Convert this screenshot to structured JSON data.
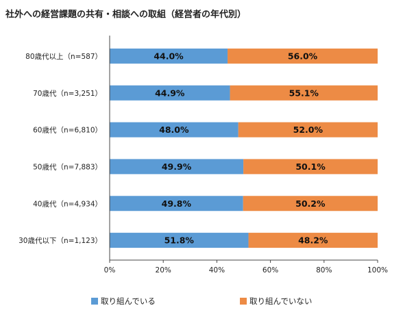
{
  "chart_data": {
    "type": "bar",
    "orientation": "horizontal",
    "stacked": true,
    "title": "社外への経営課題の共有・相談への取組（経営者の年代別）",
    "categories": [
      "80歳代以上（n=587）",
      "70歳代（n=3,251）",
      "60歳代（n=6,810）",
      "50歳代（n=7,883）",
      "40歳代（n=4,934）",
      "30歳代以下（n=1,123）"
    ],
    "series": [
      {
        "name": "取り組んでいる",
        "color": "#5b9bd5",
        "values": [
          44.0,
          44.9,
          48.0,
          49.9,
          49.8,
          51.8
        ],
        "labels": [
          "44.0%",
          "44.9%",
          "48.0%",
          "49.9%",
          "49.8%",
          "51.8%"
        ]
      },
      {
        "name": "取り組んでいない",
        "color": "#ed8b45",
        "values": [
          56.0,
          55.1,
          52.0,
          50.1,
          50.2,
          48.2
        ],
        "labels": [
          "56.0%",
          "55.1%",
          "52.0%",
          "50.1%",
          "50.2%",
          "48.2%"
        ]
      }
    ],
    "xlim": [
      0,
      100
    ],
    "xticks": [
      "0%",
      "20%",
      "40%",
      "60%",
      "80%",
      "100%"
    ],
    "grid": false,
    "legend_position": "bottom"
  }
}
